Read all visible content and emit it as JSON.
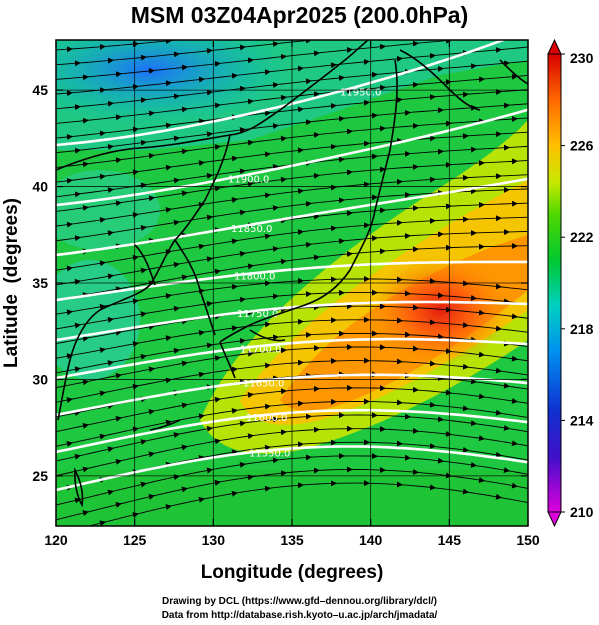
{
  "title": "MSM 03Z04Apr2025 (200.0hPa)",
  "credits": {
    "line1": "Drawing by DCL (https://www.gfd–dennou.org/library/dcl/)",
    "line2": "Data from http://database.rish.kyoto–u.ac.jp/arch/jmadata/"
  },
  "chart_data": {
    "type": "heatmap",
    "title": "MSM 03Z04Apr2025 (200.0hPa)",
    "xlabel": "Longitude (degrees)",
    "ylabel": "Latitude  (degrees)",
    "xlim": [
      120,
      150
    ],
    "ylim": [
      22.4,
      47.6
    ],
    "x_ticks": [
      "120",
      "125",
      "130",
      "135",
      "140",
      "145",
      "150"
    ],
    "y_ticks": [
      "25",
      "30",
      "35",
      "40",
      "45"
    ],
    "grid": true,
    "colorbar": {
      "min": 210,
      "max": 230,
      "tick_labels": [
        "230",
        "226",
        "222",
        "218",
        "214",
        "210"
      ],
      "colors": [
        "#dd00dd",
        "#2020cc",
        "#0078ff",
        "#00c8c8",
        "#00c800",
        "#b4e600",
        "#ffc800",
        "#ff7800",
        "#dc0000"
      ]
    },
    "contour_labels": [
      "11950.0",
      "11900.0",
      "11850.0",
      "11800.0",
      "11750.0",
      "11700.0",
      "11650.0",
      "11600.0",
      "11550.0"
    ],
    "wind_direction": "westerly"
  }
}
